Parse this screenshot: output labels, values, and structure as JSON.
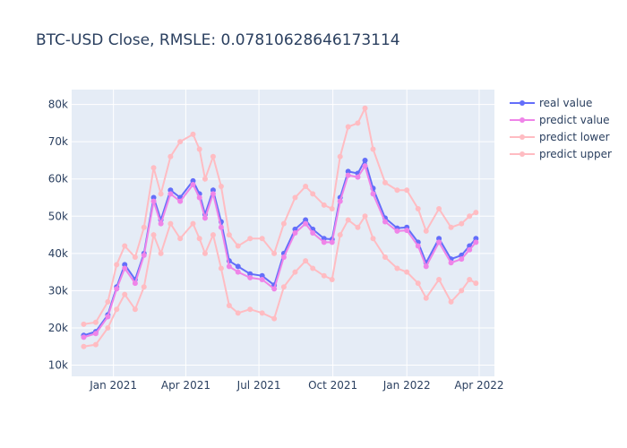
{
  "chart_data": {
    "type": "line",
    "title": "BTC-USD Close, RMSLE: 0.07810628646173114",
    "xlabel": "",
    "ylabel": "",
    "x_range": [
      "2020-11-10",
      "2022-04-20"
    ],
    "ylim": [
      7000,
      84000
    ],
    "x_ticks": [
      {
        "date": "2021-01-01",
        "label": "Jan 2021"
      },
      {
        "date": "2021-04-01",
        "label": "Apr 2021"
      },
      {
        "date": "2021-07-01",
        "label": "Jul 2021"
      },
      {
        "date": "2021-10-01",
        "label": "Oct 2021"
      },
      {
        "date": "2022-01-01",
        "label": "Jan 2022"
      },
      {
        "date": "2022-04-01",
        "label": "Apr 2022"
      }
    ],
    "y_ticks": [
      {
        "value": 10000,
        "label": "10k"
      },
      {
        "value": 20000,
        "label": "20k"
      },
      {
        "value": 30000,
        "label": "30k"
      },
      {
        "value": 40000,
        "label": "40k"
      },
      {
        "value": 50000,
        "label": "50k"
      },
      {
        "value": 60000,
        "label": "60k"
      },
      {
        "value": 70000,
        "label": "70k"
      },
      {
        "value": 80000,
        "label": "80k"
      }
    ],
    "x": [
      "2020-11-25",
      "2020-12-10",
      "2020-12-25",
      "2021-01-05",
      "2021-01-15",
      "2021-01-28",
      "2021-02-08",
      "2021-02-20",
      "2021-03-01",
      "2021-03-13",
      "2021-03-25",
      "2021-04-10",
      "2021-04-18",
      "2021-04-25",
      "2021-05-05",
      "2021-05-15",
      "2021-05-25",
      "2021-06-05",
      "2021-06-20",
      "2021-07-05",
      "2021-07-20",
      "2021-08-01",
      "2021-08-15",
      "2021-08-28",
      "2021-09-06",
      "2021-09-20",
      "2021-09-30",
      "2021-10-10",
      "2021-10-20",
      "2021-11-01",
      "2021-11-10",
      "2021-11-20",
      "2021-12-05",
      "2021-12-20",
      "2022-01-01",
      "2022-01-15",
      "2022-01-25",
      "2022-02-10",
      "2022-02-25",
      "2022-03-10",
      "2022-03-20",
      "2022-03-28"
    ],
    "series": [
      {
        "name": "real value",
        "color": "#636efa",
        "values": [
          18000,
          19000,
          23500,
          31000,
          37000,
          33000,
          40000,
          55000,
          49000,
          57000,
          55000,
          59500,
          56000,
          50500,
          57000,
          48500,
          38000,
          36500,
          34500,
          34000,
          31500,
          40000,
          46500,
          49000,
          46500,
          44000,
          43800,
          55000,
          62000,
          61500,
          65000,
          57500,
          49500,
          46800,
          47000,
          43000,
          37500,
          44000,
          38500,
          39500,
          42000,
          44000
        ]
      },
      {
        "name": "predict value",
        "color": "#ef84e8",
        "values": [
          17500,
          18500,
          23000,
          30500,
          36000,
          32000,
          39500,
          54000,
          48000,
          56000,
          54000,
          58500,
          55000,
          49500,
          56000,
          47000,
          36500,
          35000,
          33500,
          33000,
          30500,
          39000,
          45500,
          48000,
          45500,
          43000,
          43000,
          54000,
          61000,
          60500,
          63500,
          56000,
          48500,
          46000,
          46200,
          42000,
          36500,
          43000,
          37500,
          38500,
          41000,
          43000
        ]
      },
      {
        "name": "predict lower",
        "color": "#ffbcc2",
        "values": [
          15000,
          15500,
          20000,
          25000,
          29000,
          25000,
          31000,
          45000,
          40000,
          48000,
          44000,
          48000,
          44000,
          40000,
          45000,
          36000,
          26000,
          24000,
          25000,
          24000,
          22500,
          31000,
          35000,
          38000,
          36000,
          34000,
          33000,
          45000,
          49000,
          47000,
          50000,
          44000,
          39000,
          36000,
          35000,
          32000,
          28000,
          33000,
          27000,
          30000,
          33000,
          32000
        ]
      },
      {
        "name": "predict upper",
        "color": "#ffbcc2",
        "values": [
          21000,
          21500,
          27000,
          37000,
          42000,
          39000,
          47000,
          63000,
          56000,
          66000,
          70000,
          72000,
          68000,
          60000,
          66000,
          58000,
          45000,
          42000,
          44000,
          44000,
          40000,
          48000,
          55000,
          58000,
          56000,
          53000,
          52000,
          66000,
          74000,
          75000,
          79000,
          68000,
          59000,
          57000,
          57000,
          52000,
          46000,
          52000,
          47000,
          48000,
          50000,
          51000
        ]
      }
    ],
    "legend": {
      "placement": "right-top"
    },
    "grid": true
  }
}
